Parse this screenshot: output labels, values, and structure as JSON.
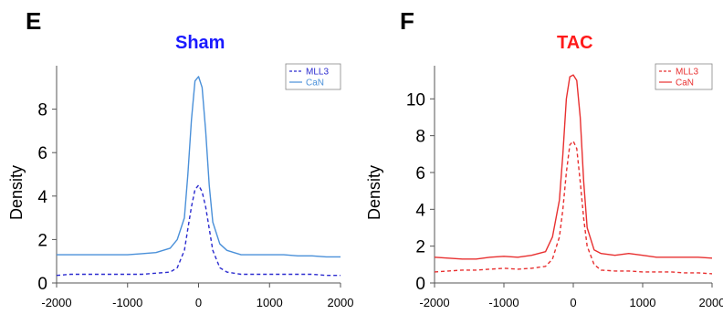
{
  "panels": [
    {
      "letter": "E",
      "title": "Sham",
      "title_color": "#1a1aff",
      "ylabel": "Density",
      "legend": [
        {
          "label": "MLL3",
          "color": "#2b2bcf",
          "dash": true
        },
        {
          "label": "CaN",
          "color": "#4a90d9",
          "dash": false
        }
      ]
    },
    {
      "letter": "F",
      "title": "TAC",
      "title_color": "#ff1a1a",
      "ylabel": "Density",
      "legend": [
        {
          "label": "MLL3",
          "color": "#e83030",
          "dash": true
        },
        {
          "label": "CaN",
          "color": "#e83030",
          "dash": false
        }
      ]
    }
  ],
  "chart_data": [
    {
      "type": "line",
      "title": "Sham",
      "xlabel": "",
      "ylabel": "Density",
      "xlim": [
        -2000,
        2000
      ],
      "ylim": [
        0,
        10
      ],
      "xticks": [
        -2000,
        -1000,
        0,
        1000,
        2000
      ],
      "yticks": [
        0,
        2,
        4,
        6,
        8
      ],
      "legend_position": "top-right",
      "series": [
        {
          "name": "MLL3",
          "color": "#2b2bcf",
          "style": "dashed",
          "x": [
            -2000,
            -1800,
            -1600,
            -1400,
            -1200,
            -1000,
            -800,
            -600,
            -400,
            -300,
            -200,
            -150,
            -100,
            -50,
            0,
            50,
            100,
            150,
            200,
            300,
            400,
            600,
            800,
            1000,
            1200,
            1400,
            1600,
            1800,
            2000
          ],
          "y": [
            0.35,
            0.4,
            0.4,
            0.4,
            0.4,
            0.4,
            0.4,
            0.45,
            0.5,
            0.7,
            1.5,
            2.5,
            3.5,
            4.3,
            4.5,
            4.2,
            3.5,
            2.5,
            1.5,
            0.7,
            0.5,
            0.4,
            0.4,
            0.4,
            0.4,
            0.4,
            0.4,
            0.35,
            0.35
          ]
        },
        {
          "name": "CaN",
          "color": "#4a90d9",
          "style": "solid",
          "x": [
            -2000,
            -1800,
            -1600,
            -1400,
            -1200,
            -1000,
            -800,
            -600,
            -400,
            -300,
            -200,
            -150,
            -100,
            -50,
            0,
            50,
            100,
            150,
            200,
            300,
            400,
            600,
            800,
            1000,
            1200,
            1400,
            1600,
            1800,
            2000
          ],
          "y": [
            1.3,
            1.3,
            1.3,
            1.3,
            1.3,
            1.3,
            1.35,
            1.4,
            1.6,
            2.0,
            3.0,
            5.0,
            7.5,
            9.3,
            9.5,
            9.0,
            7.0,
            4.5,
            2.8,
            1.8,
            1.5,
            1.3,
            1.3,
            1.3,
            1.3,
            1.25,
            1.25,
            1.2,
            1.2
          ]
        }
      ]
    },
    {
      "type": "line",
      "title": "TAC",
      "xlabel": "",
      "ylabel": "Density",
      "xlim": [
        -2000,
        2000
      ],
      "ylim": [
        0,
        11.8
      ],
      "xticks": [
        -2000,
        -1000,
        0,
        1000,
        2000
      ],
      "yticks": [
        0,
        2,
        4,
        6,
        8,
        10
      ],
      "legend_position": "top-right",
      "series": [
        {
          "name": "MLL3",
          "color": "#e83030",
          "style": "dashed",
          "x": [
            -2000,
            -1800,
            -1600,
            -1400,
            -1200,
            -1000,
            -800,
            -600,
            -400,
            -300,
            -200,
            -150,
            -100,
            -50,
            0,
            50,
            100,
            150,
            200,
            300,
            400,
            600,
            800,
            1000,
            1200,
            1400,
            1600,
            1800,
            2000
          ],
          "y": [
            0.6,
            0.65,
            0.7,
            0.7,
            0.75,
            0.8,
            0.75,
            0.8,
            0.9,
            1.3,
            2.5,
            4.0,
            6.0,
            7.5,
            7.7,
            7.3,
            5.5,
            3.5,
            2.0,
            1.0,
            0.7,
            0.65,
            0.65,
            0.6,
            0.6,
            0.6,
            0.55,
            0.55,
            0.5
          ]
        },
        {
          "name": "CaN",
          "color": "#e83030",
          "style": "solid",
          "x": [
            -2000,
            -1800,
            -1600,
            -1400,
            -1200,
            -1000,
            -800,
            -600,
            -400,
            -300,
            -200,
            -150,
            -100,
            -50,
            0,
            50,
            100,
            150,
            200,
            300,
            400,
            600,
            800,
            1000,
            1200,
            1400,
            1600,
            1800,
            2000
          ],
          "y": [
            1.4,
            1.35,
            1.3,
            1.3,
            1.4,
            1.45,
            1.4,
            1.5,
            1.7,
            2.5,
            4.5,
            7.0,
            10.0,
            11.2,
            11.3,
            11.0,
            9.0,
            5.5,
            3.0,
            1.8,
            1.6,
            1.5,
            1.6,
            1.5,
            1.4,
            1.4,
            1.4,
            1.4,
            1.35
          ]
        }
      ]
    }
  ]
}
